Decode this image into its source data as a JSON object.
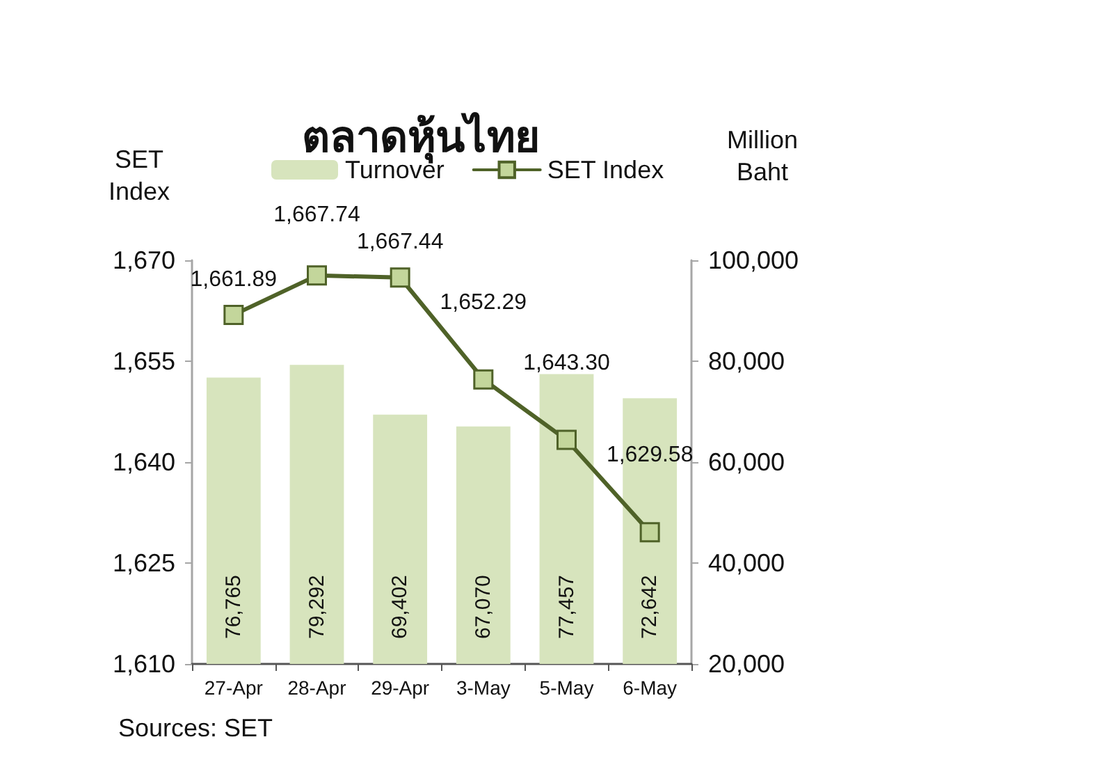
{
  "chart_data": {
    "type": "bar",
    "title": "ตลาดหุ้นไทย",
    "ylabel": "SET Index",
    "y2label": "Million Baht",
    "categories": [
      "27-Apr",
      "28-Apr",
      "29-Apr",
      "3-May",
      "5-May",
      "6-May"
    ],
    "series": [
      {
        "name": "Turnover",
        "axis": "y2",
        "color": "#d7e4bd",
        "values": [
          76765,
          79292,
          69402,
          67070,
          77457,
          72642
        ],
        "value_labels": [
          "76,765",
          "79,292",
          "69,402",
          "67,070",
          "77,457",
          "72,642"
        ]
      },
      {
        "name": "SET Index",
        "type": "line",
        "axis": "y",
        "color": "#4f6228",
        "values": [
          1661.89,
          1667.74,
          1667.44,
          1652.29,
          1643.3,
          1629.58
        ],
        "value_labels": [
          "1,661.89",
          "1,667.74",
          "1,667.44",
          "1,652.29",
          "1,643.30",
          "1,629.58"
        ]
      }
    ],
    "ylim": [
      1610,
      1670
    ],
    "yticks": [
      {
        "value": 1610,
        "label": "1,610"
      },
      {
        "value": 1625,
        "label": "1,625"
      },
      {
        "value": 1640,
        "label": "1,640"
      },
      {
        "value": 1655,
        "label": "1,655"
      },
      {
        "value": 1670,
        "label": "1,670"
      }
    ],
    "y2lim": [
      20000,
      100000
    ],
    "y2ticks": [
      {
        "value": 20000,
        "label": "20,000"
      },
      {
        "value": 40000,
        "label": "40,000"
      },
      {
        "value": 60000,
        "label": "60,000"
      },
      {
        "value": 80000,
        "label": "80,000"
      },
      {
        "value": 100000,
        "label": "100,000"
      }
    ],
    "annotations": [
      "Sources: SET"
    ],
    "grid": false,
    "legend": "top",
    "marker": "square",
    "line_style": "solid"
  }
}
